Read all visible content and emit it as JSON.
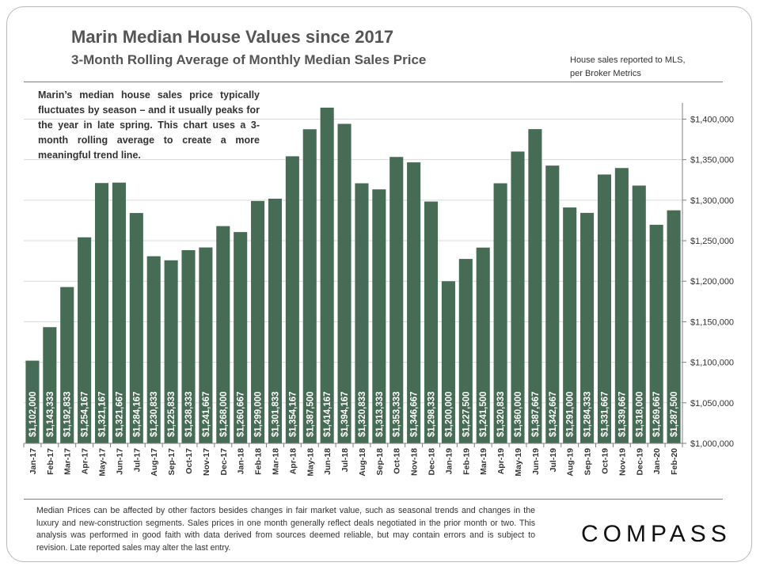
{
  "header": {
    "title": "Marin Median House Values since 2017",
    "subtitle": "3-Month Rolling Average of Monthly Median Sales Price",
    "source_note": "House sales reported to MLS, per Broker Metrics"
  },
  "note": "Marin’s median house sales price typically fluctuates by season – and it usually peaks for the year in late spring. This chart uses a 3-month rolling average to create a more meaningful trend line.",
  "footnote": "Median Prices can be affected by other factors besides changes in fair market value, such as seasonal trends and changes in the luxury and new-construction segments. Sales prices in one month generally reflect deals negotiated in the prior month or two. This analysis was performed in good faith with data derived from sources deemed reliable, but may contain errors and is subject to revision. Late reported sales may alter the last entry.",
  "logo": "COMPASS",
  "colors": {
    "bar": "#476c55",
    "grid": "#d9d9d9",
    "text": "#333333"
  },
  "chart_data": {
    "type": "bar",
    "title": "Marin Median House Values since 2017",
    "subtitle": "3-Month Rolling Average of Monthly Median Sales Price",
    "categories": [
      "Jan-17",
      "Feb-17",
      "Mar-17",
      "Apr-17",
      "May-17",
      "Jun-17",
      "Jul-17",
      "Aug-17",
      "Sep-17",
      "Oct-17",
      "Nov-17",
      "Dec-17",
      "Jan-18",
      "Feb-18",
      "Mar-18",
      "Apr-18",
      "May-18",
      "Jun-18",
      "Jul-18",
      "Aug-18",
      "Sep-18",
      "Oct-18",
      "Nov-18",
      "Dec-18",
      "Jan-19",
      "Feb-19",
      "Mar-19",
      "Apr-19",
      "May-19",
      "Jun-19",
      "Jul-19",
      "Aug-19",
      "Sep-19",
      "Oct-19",
      "Nov-19",
      "Dec-19",
      "Jan-20",
      "Feb-20"
    ],
    "values": [
      1102000,
      1143333,
      1192833,
      1254167,
      1321167,
      1321667,
      1284167,
      1230833,
      1225833,
      1238333,
      1241667,
      1268000,
      1260667,
      1299000,
      1301833,
      1354167,
      1387500,
      1414167,
      1394167,
      1320833,
      1313333,
      1353333,
      1346667,
      1298333,
      1200000,
      1227500,
      1241500,
      1320833,
      1360000,
      1387667,
      1342667,
      1291000,
      1284333,
      1331667,
      1339667,
      1318000,
      1269667,
      1287500
    ],
    "data_labels": [
      "$1,102,000",
      "$1,143,333",
      "$1,192,833",
      "$1,254,167",
      "$1,321,167",
      "$1,321,667",
      "$1,284,167",
      "$1,230,833",
      "$1,225,833",
      "$1,238,333",
      "$1,241,667",
      "$1,268,000",
      "$1,260,667",
      "$1,299,000",
      "$1,301,833",
      "$1,354,167",
      "$1,387,500",
      "$1,414,167",
      "$1,394,167",
      "$1,320,833",
      "$1,313,333",
      "$1,353,333",
      "$1,346,667",
      "$1,298,333",
      "$1,200,000",
      "$1,227,500",
      "$1,241,500",
      "$1,320,833",
      "$1,360,000",
      "$1,387,667",
      "$1,342,667",
      "$1,291,000",
      "$1,284,333",
      "$1,331,667",
      "$1,339,667",
      "$1,318,000",
      "$1,269,667",
      "$1,287,500"
    ],
    "ylim": [
      1000000,
      1420000
    ],
    "yticks": [
      1000000,
      1050000,
      1100000,
      1150000,
      1200000,
      1250000,
      1300000,
      1350000,
      1400000
    ],
    "ytick_labels": [
      "$1,000,000",
      "$1,050,000",
      "$1,100,000",
      "$1,150,000",
      "$1,200,000",
      "$1,250,000",
      "$1,300,000",
      "$1,350,000",
      "$1,400,000"
    ],
    "y_axis_position": "right",
    "grid": true,
    "legend": "none"
  }
}
